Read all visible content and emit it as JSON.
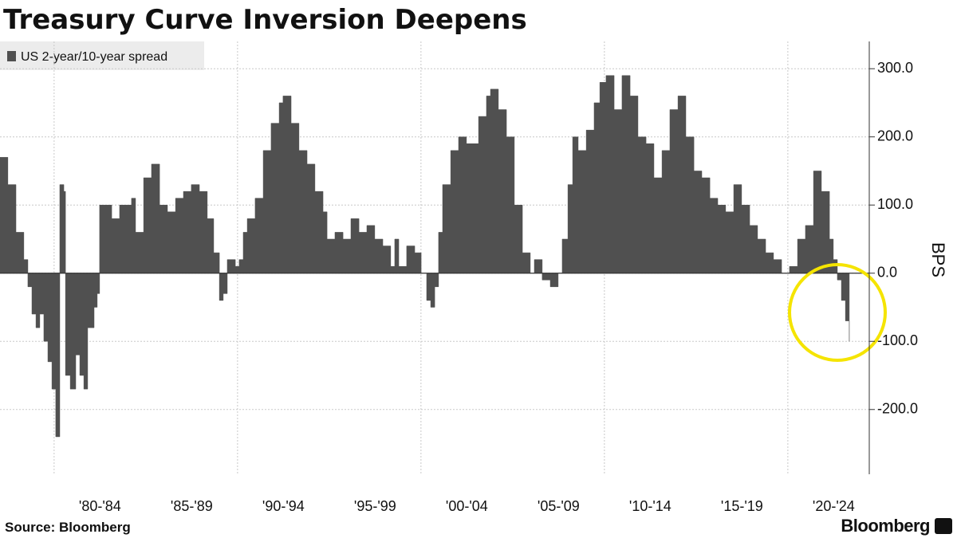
{
  "chart_data": {
    "type": "area",
    "title": "Treasury Curve Inversion Deepens",
    "y_label": "BPS",
    "source": "Source: Bloomberg",
    "brand": "Bloomberg",
    "legend": "upper left",
    "grid": true,
    "xlim": [
      1977.05,
      2024.44
    ],
    "ylim": [
      -295,
      340
    ],
    "yticks": [
      {
        "value": 300,
        "label": "300.0"
      },
      {
        "value": 200,
        "label": "200.0"
      },
      {
        "value": 100,
        "label": "100.0"
      },
      {
        "value": 0,
        "label": "0.0"
      },
      {
        "value": -100,
        "label": "-100.0"
      },
      {
        "value": -200,
        "label": "-200.0"
      }
    ],
    "xticks": [
      {
        "value": 1982.5,
        "label": "'80-'84"
      },
      {
        "value": 1987.5,
        "label": "'85-'89"
      },
      {
        "value": 1992.5,
        "label": "'90-'94"
      },
      {
        "value": 1997.5,
        "label": "'95-'99"
      },
      {
        "value": 2002.5,
        "label": "'00-'04"
      },
      {
        "value": 2007.5,
        "label": "'05-'09"
      },
      {
        "value": 2012.5,
        "label": "'10-'14"
      },
      {
        "value": 2017.5,
        "label": "'15-'19"
      },
      {
        "value": 2022.5,
        "label": "'20-'24"
      }
    ],
    "xgrid": [
      1980,
      1990,
      2000,
      2010,
      2020
    ],
    "x": [
      1977.05,
      1977.48,
      1977.92,
      1978.35,
      1978.57,
      1978.79,
      1979.01,
      1979.22,
      1979.44,
      1979.66,
      1979.88,
      1980.09,
      1980.31,
      1980.53,
      1980.62,
      1980.88,
      1981.18,
      1981.4,
      1981.62,
      1981.83,
      1982.18,
      1982.35,
      1982.48,
      1982.7,
      1983.14,
      1983.57,
      1984.01,
      1984.22,
      1984.44,
      1984.66,
      1984.88,
      1985.31,
      1985.75,
      1986.18,
      1986.62,
      1987.05,
      1987.48,
      1987.92,
      1988.35,
      1988.7,
      1989.01,
      1989.22,
      1989.44,
      1989.88,
      1990.09,
      1990.31,
      1990.53,
      1990.96,
      1991.4,
      1991.83,
      1992.27,
      1992.48,
      1992.92,
      1993.35,
      1993.79,
      1994.22,
      1994.66,
      1994.88,
      1995.31,
      1995.75,
      1996.18,
      1996.62,
      1997.05,
      1997.48,
      1997.92,
      1998.35,
      1998.57,
      1998.79,
      1999.22,
      1999.66,
      2000.01,
      2000.31,
      2000.53,
      2000.75,
      2000.96,
      2001.18,
      2001.62,
      2002.05,
      2002.48,
      2003.14,
      2003.57,
      2003.79,
      2004.22,
      2004.66,
      2005.09,
      2005.53,
      2005.96,
      2006.18,
      2006.61,
      2007.05,
      2007.48,
      2007.7,
      2008.01,
      2008.27,
      2008.57,
      2009.01,
      2009.44,
      2009.75,
      2010.09,
      2010.53,
      2010.96,
      2011.4,
      2011.83,
      2012.27,
      2012.7,
      2013.14,
      2013.57,
      2014.01,
      2014.44,
      2014.88,
      2015.31,
      2015.75,
      2016.18,
      2016.61,
      2017.05,
      2017.48,
      2017.92,
      2018.35,
      2018.79,
      2019.22,
      2019.66,
      2020.09,
      2020.53,
      2020.96,
      2021.4,
      2021.83,
      2022.27,
      2022.48,
      2022.7,
      2022.92,
      2023.14,
      2023.35
    ],
    "series": [
      {
        "name": "US 2-year/10-year spread",
        "color": "#505050",
        "values": [
          170,
          130,
          60,
          20,
          -20,
          -60,
          -80,
          -60,
          -100,
          -130,
          -170,
          -240,
          130,
          120,
          -150,
          -170,
          -120,
          -150,
          -170,
          -80,
          -50,
          -30,
          100,
          100,
          80,
          100,
          100,
          110,
          60,
          60,
          140,
          160,
          100,
          90,
          110,
          120,
          130,
          120,
          80,
          30,
          -40,
          -30,
          20,
          10,
          20,
          60,
          80,
          110,
          180,
          220,
          250,
          260,
          220,
          180,
          160,
          120,
          90,
          50,
          60,
          50,
          80,
          60,
          70,
          50,
          40,
          10,
          50,
          10,
          40,
          30,
          0,
          -40,
          -50,
          -20,
          60,
          130,
          180,
          200,
          190,
          230,
          260,
          270,
          240,
          200,
          100,
          30,
          0,
          20,
          -10,
          -20,
          0,
          50,
          130,
          200,
          180,
          210,
          250,
          280,
          290,
          240,
          290,
          260,
          200,
          190,
          140,
          180,
          240,
          260,
          200,
          150,
          140,
          110,
          100,
          90,
          130,
          100,
          70,
          50,
          30,
          20,
          0,
          10,
          50,
          70,
          150,
          120,
          50,
          20,
          -10,
          -40,
          -70,
          -100
        ]
      }
    ]
  }
}
